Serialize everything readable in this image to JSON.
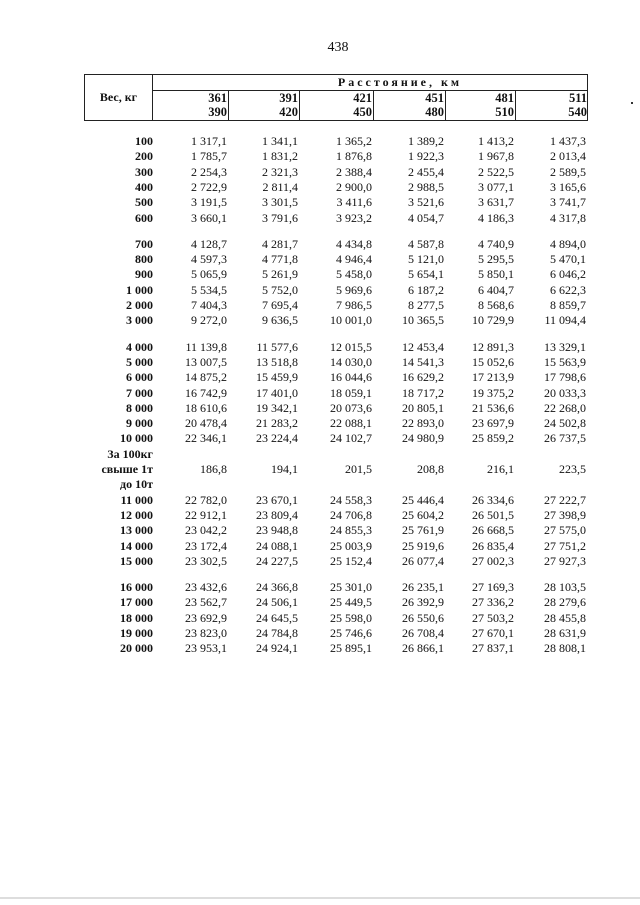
{
  "page_number": "438",
  "table": {
    "weight_header": "Вес, кг",
    "distance_header": "Расстояние, км",
    "ranges": [
      {
        "from": "361",
        "to": "390"
      },
      {
        "from": "391",
        "to": "420"
      },
      {
        "from": "421",
        "to": "450"
      },
      {
        "from": "451",
        "to": "480"
      },
      {
        "from": "481",
        "to": "510"
      },
      {
        "from": "511",
        "to": "540"
      }
    ],
    "groups": [
      [
        {
          "label": "100",
          "values": [
            "1 317,1",
            "1 341,1",
            "1 365,2",
            "1 389,2",
            "1 413,2",
            "1 437,3"
          ]
        },
        {
          "label": "200",
          "values": [
            "1 785,7",
            "1 831,2",
            "1 876,8",
            "1 922,3",
            "1 967,8",
            "2 013,4"
          ]
        },
        {
          "label": "300",
          "values": [
            "2 254,3",
            "2 321,3",
            "2 388,4",
            "2 455,4",
            "2 522,5",
            "2 589,5"
          ]
        },
        {
          "label": "400",
          "values": [
            "2 722,9",
            "2 811,4",
            "2 900,0",
            "2 988,5",
            "3 077,1",
            "3 165,6"
          ]
        },
        {
          "label": "500",
          "values": [
            "3 191,5",
            "3 301,5",
            "3 411,6",
            "3 521,6",
            "3 631,7",
            "3 741,7"
          ]
        },
        {
          "label": "600",
          "values": [
            "3 660,1",
            "3 791,6",
            "3 923,2",
            "4 054,7",
            "4 186,3",
            "4 317,8"
          ]
        }
      ],
      [
        {
          "label": "700",
          "values": [
            "4 128,7",
            "4 281,7",
            "4 434,8",
            "4 587,8",
            "4 740,9",
            "4 894,0"
          ]
        },
        {
          "label": "800",
          "values": [
            "4 597,3",
            "4 771,8",
            "4 946,4",
            "5 121,0",
            "5 295,5",
            "5 470,1"
          ]
        },
        {
          "label": "900",
          "values": [
            "5 065,9",
            "5 261,9",
            "5 458,0",
            "5 654,1",
            "5 850,1",
            "6 046,2"
          ]
        },
        {
          "label": "1 000",
          "values": [
            "5 534,5",
            "5 752,0",
            "5 969,6",
            "6 187,2",
            "6 404,7",
            "6 622,3"
          ]
        },
        {
          "label": "2 000",
          "values": [
            "7 404,3",
            "7 695,4",
            "7 986,5",
            "8 277,5",
            "8 568,6",
            "8 859,7"
          ]
        },
        {
          "label": "3 000",
          "values": [
            "9 272,0",
            "9 636,5",
            "10 001,0",
            "10 365,5",
            "10 729,9",
            "11 094,4"
          ]
        }
      ],
      [
        {
          "label": "4 000",
          "values": [
            "11 139,8",
            "11 577,6",
            "12 015,5",
            "12 453,4",
            "12 891,3",
            "13 329,1"
          ]
        },
        {
          "label": "5 000",
          "values": [
            "13 007,5",
            "13 518,8",
            "14 030,0",
            "14 541,3",
            "15 052,6",
            "15 563,9"
          ]
        },
        {
          "label": "6 000",
          "values": [
            "14 875,2",
            "15 459,9",
            "16 044,6",
            "16 629,2",
            "17 213,9",
            "17 798,6"
          ]
        },
        {
          "label": "7 000",
          "values": [
            "16 742,9",
            "17 401,0",
            "18 059,1",
            "18 717,2",
            "19 375,2",
            "20 033,3"
          ]
        },
        {
          "label": "8 000",
          "values": [
            "18 610,6",
            "19 342,1",
            "20 073,6",
            "20 805,1",
            "21 536,6",
            "22 268,0"
          ]
        },
        {
          "label": "9 000",
          "values": [
            "20 478,4",
            "21 283,2",
            "22 088,1",
            "22 893,0",
            "23 697,9",
            "24 502,8"
          ]
        },
        {
          "label": "10 000",
          "values": [
            "22 346,1",
            "23 224,4",
            "24 102,7",
            "24 980,9",
            "25 859,2",
            "26 737,5"
          ]
        },
        {
          "label": "За 100кг",
          "values": []
        },
        {
          "label": "свыше 1т",
          "values": [
            "186,8",
            "194,1",
            "201,5",
            "208,8",
            "216,1",
            "223,5"
          ]
        },
        {
          "label": "до 10т",
          "values": []
        },
        {
          "label": "11 000",
          "values": [
            "22 782,0",
            "23 670,1",
            "24 558,3",
            "25 446,4",
            "26 334,6",
            "27 222,7"
          ]
        },
        {
          "label": "12 000",
          "values": [
            "22 912,1",
            "23 809,4",
            "24 706,8",
            "25 604,2",
            "26 501,5",
            "27 398,9"
          ]
        },
        {
          "label": "13 000",
          "values": [
            "23 042,2",
            "23 948,8",
            "24 855,3",
            "25 761,9",
            "26 668,5",
            "27 575,0"
          ]
        },
        {
          "label": "14 000",
          "values": [
            "23 172,4",
            "24 088,1",
            "25 003,9",
            "25 919,6",
            "26 835,4",
            "27 751,2"
          ]
        },
        {
          "label": "15 000",
          "values": [
            "23 302,5",
            "24 227,5",
            "25 152,4",
            "26 077,4",
            "27 002,3",
            "27 927,3"
          ]
        }
      ],
      [
        {
          "label": "16 000",
          "values": [
            "23 432,6",
            "24 366,8",
            "25 301,0",
            "26 235,1",
            "27 169,3",
            "28 103,5"
          ]
        },
        {
          "label": "17 000",
          "values": [
            "23 562,7",
            "24 506,1",
            "25 449,5",
            "26 392,9",
            "27 336,2",
            "28 279,6"
          ]
        },
        {
          "label": "18 000",
          "values": [
            "23 692,9",
            "24 645,5",
            "25 598,0",
            "26 550,6",
            "27 503,2",
            "28 455,8"
          ]
        },
        {
          "label": "19 000",
          "values": [
            "23 823,0",
            "24 784,8",
            "25 746,6",
            "26 708,4",
            "27 670,1",
            "28 631,9"
          ]
        },
        {
          "label": "20 000",
          "values": [
            "23 953,1",
            "24 924,1",
            "25 895,1",
            "26 866,1",
            "27 837,1",
            "28 808,1"
          ]
        }
      ]
    ]
  }
}
